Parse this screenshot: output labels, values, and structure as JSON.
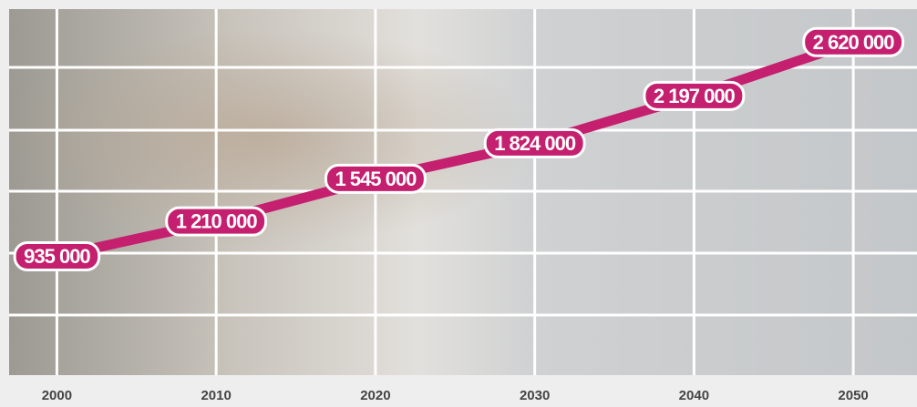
{
  "chart_data": {
    "type": "line",
    "x": [
      2000,
      2010,
      2020,
      2030,
      2040,
      2050
    ],
    "values": [
      935000,
      1210000,
      1545000,
      1824000,
      2197000,
      2620000
    ],
    "value_labels": [
      "935 000",
      "1 210 000",
      "1 545 000",
      "1 824 000",
      "2 197 000",
      "2 620 000"
    ],
    "color": "#c51f6f",
    "xlim": [
      1997,
      2054
    ],
    "xticks": [
      2000,
      2010,
      2020,
      2030,
      2040,
      2050
    ],
    "ylim": [
      0,
      2880000
    ],
    "grid": true
  }
}
